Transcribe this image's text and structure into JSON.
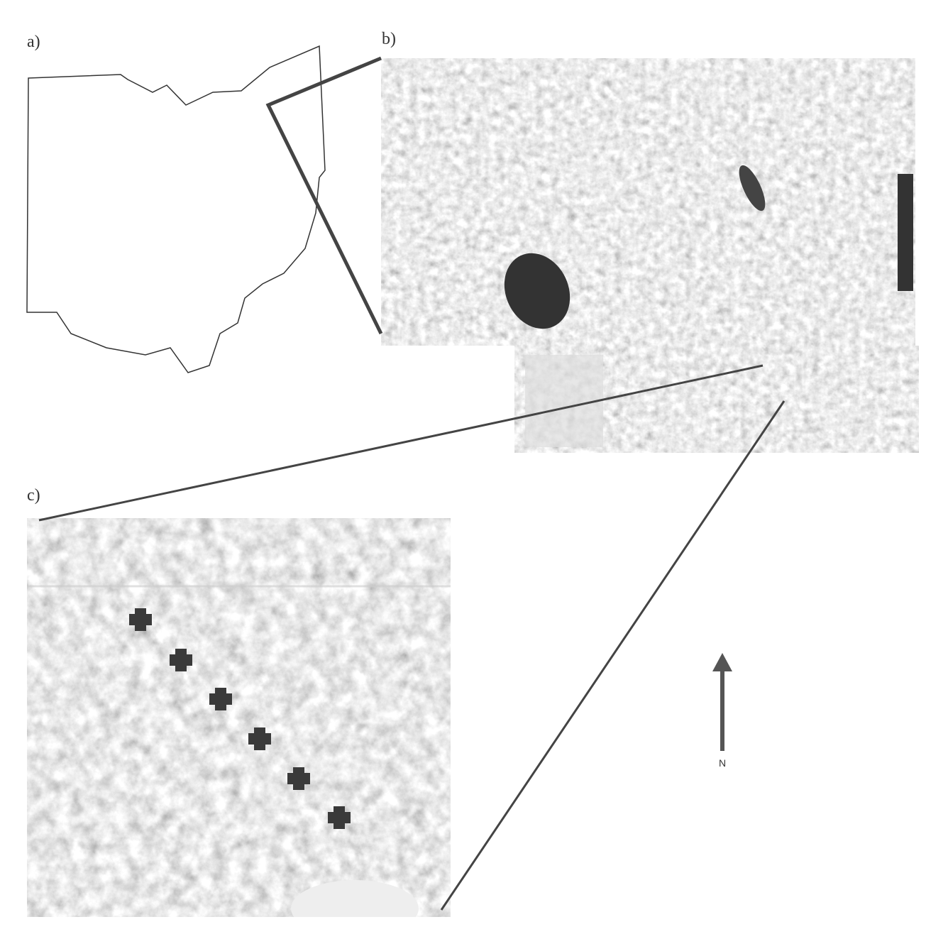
{
  "labels": [
    "a)",
    "b)",
    "c)"
  ],
  "compass": "N"
}
